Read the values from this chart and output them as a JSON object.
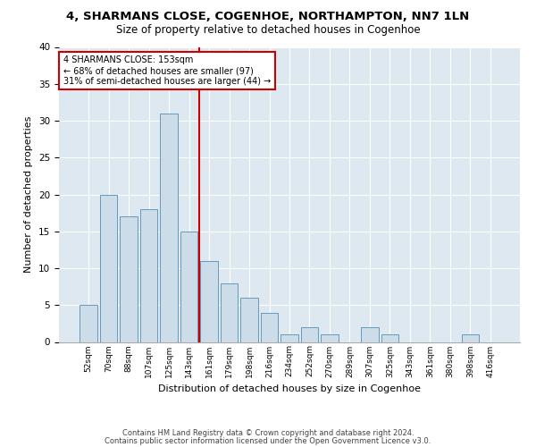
{
  "title": "4, SHARMANS CLOSE, COGENHOE, NORTHAMPTON, NN7 1LN",
  "subtitle": "Size of property relative to detached houses in Cogenhoe",
  "xlabel": "Distribution of detached houses by size in Cogenhoe",
  "ylabel": "Number of detached properties",
  "bar_labels": [
    "52sqm",
    "70sqm",
    "88sqm",
    "107sqm",
    "125sqm",
    "143sqm",
    "161sqm",
    "179sqm",
    "198sqm",
    "216sqm",
    "234sqm",
    "252sqm",
    "270sqm",
    "289sqm",
    "307sqm",
    "325sqm",
    "343sqm",
    "361sqm",
    "380sqm",
    "398sqm",
    "416sqm"
  ],
  "bar_values": [
    5,
    20,
    17,
    18,
    31,
    15,
    11,
    8,
    6,
    4,
    1,
    2,
    1,
    0,
    2,
    1,
    0,
    0,
    0,
    1,
    0
  ],
  "bar_color": "#ccdce8",
  "bar_edgecolor": "#6699bb",
  "vline_x": 5.5,
  "vline_color": "#cc0000",
  "annotation_text": "4 SHARMANS CLOSE: 153sqm\n← 68% of detached houses are smaller (97)\n31% of semi-detached houses are larger (44) →",
  "annotation_box_color": "#ffffff",
  "annotation_box_edgecolor": "#cc0000",
  "footer_line1": "Contains HM Land Registry data © Crown copyright and database right 2024.",
  "footer_line2": "Contains public sector information licensed under the Open Government Licence v3.0.",
  "ylim": [
    0,
    40
  ],
  "yticks": [
    0,
    5,
    10,
    15,
    20,
    25,
    30,
    35,
    40
  ],
  "background_color": "#dde8f0",
  "grid_color": "#ffffff",
  "title_fontsize": 9.5,
  "subtitle_fontsize": 8.5,
  "xlabel_fontsize": 8,
  "ylabel_fontsize": 8
}
